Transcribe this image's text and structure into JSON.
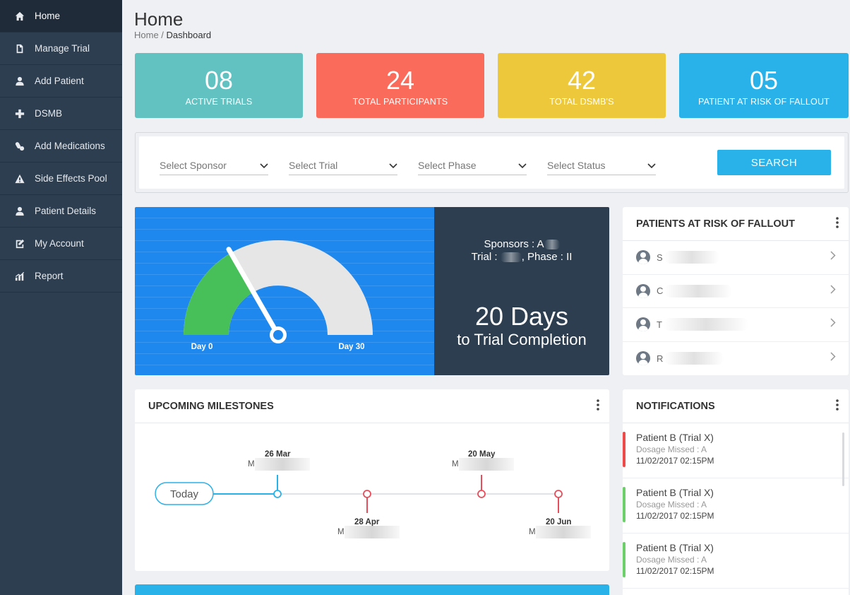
{
  "sidebar": {
    "items": [
      {
        "label": "Home",
        "icon": "home-icon",
        "active": true
      },
      {
        "label": "Manage Trial",
        "icon": "document-icon"
      },
      {
        "label": "Add Patient",
        "icon": "user-icon"
      },
      {
        "label": "DSMB",
        "icon": "plus-icon"
      },
      {
        "label": "Add Medications",
        "icon": "medication-icon"
      },
      {
        "label": "Side Effects Pool",
        "icon": "warning-icon"
      },
      {
        "label": "Patient Details",
        "icon": "user-icon"
      },
      {
        "label": "My Account",
        "icon": "edit-icon"
      },
      {
        "label": "Report",
        "icon": "chart-icon"
      }
    ]
  },
  "header": {
    "title": "Home",
    "breadcrumb_root": "Home",
    "breadcrumb_sep": " / ",
    "breadcrumb_current": "Dashboard"
  },
  "stats": [
    {
      "value": "08",
      "label": "ACTIVE TRIALS",
      "color": "#62c1c1"
    },
    {
      "value": "24",
      "label": "TOTAL PARTICIPANTS",
      "color": "#fb6b5b"
    },
    {
      "value": "42",
      "label": "TOTAL DSMB'S",
      "color": "#edc83b"
    },
    {
      "value": "05",
      "label": "PATIENT AT RISK OF FALLOUT",
      "color": "#29b2ea"
    }
  ],
  "filters": {
    "sponsor": "Select Sponsor",
    "trial": "Select Trial",
    "phase": "Select Phase",
    "status": "Select Status",
    "search_label": "SEARCH"
  },
  "gauge": {
    "start_label": "Day 0",
    "end_label": "Day 30",
    "min": 0,
    "max": 30,
    "value": 10,
    "fill_color": "#47c05a",
    "track_color": "#e6e6e6"
  },
  "trial_info": {
    "sponsors_prefix": "Sponsors : A",
    "trial_prefix": "Trial : ",
    "phase_text": ", Phase : II",
    "days": "20 Days",
    "completion": "to Trial Completion"
  },
  "risk_panel": {
    "title": "PATIENTS AT RISK OF FALLOUT",
    "patients": [
      {
        "initial": "S"
      },
      {
        "initial": "C"
      },
      {
        "initial": "T"
      },
      {
        "initial": "R"
      }
    ]
  },
  "milestones": {
    "title": "UPCOMING MILESTONES",
    "today_label": "Today",
    "items": [
      {
        "date": "26 Mar",
        "prefix": "M",
        "position": "above",
        "color": "#29b2ea"
      },
      {
        "date": "28 Apr",
        "prefix": "M",
        "position": "below",
        "color": "#e84d5b"
      },
      {
        "date": "20 May",
        "prefix": "M",
        "position": "above",
        "color": "#e84d5b"
      },
      {
        "date": "20 Jun",
        "prefix": "M",
        "position": "below",
        "color": "#e84d5b"
      }
    ]
  },
  "notifications": {
    "title": "NOTIFICATIONS",
    "items": [
      {
        "title": "Patient B (Trial X)",
        "detail": "Dosage Missed  :  A",
        "time": "11/02/2017  02:15PM",
        "color": "#ef4a4a"
      },
      {
        "title": "Patient B (Trial X)",
        "detail": "Dosage Missed  :  A",
        "time": "11/02/2017  02:15PM",
        "color": "#6ccf6a"
      },
      {
        "title": "Patient B (Trial X)",
        "detail": "Dosage Missed  :  A",
        "time": "11/02/2017  02:15PM",
        "color": "#6ccf6a"
      }
    ]
  }
}
